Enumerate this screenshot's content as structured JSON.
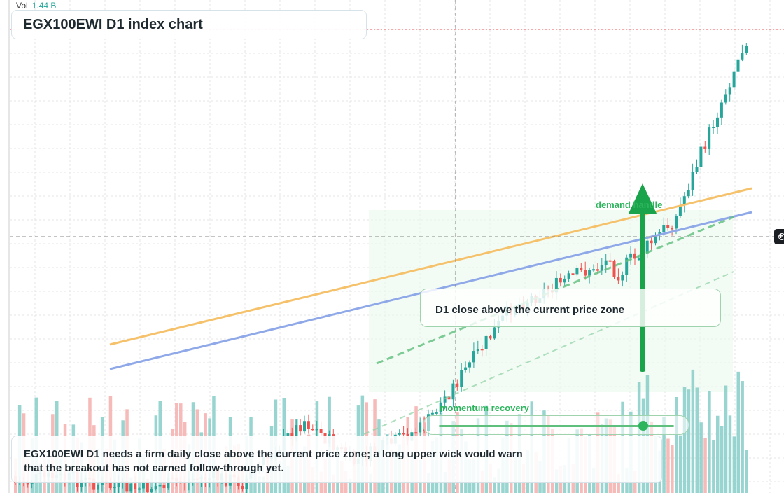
{
  "title": "EGX100EWI D1 index chart",
  "volume_legend": {
    "label": "Vol",
    "value": "1.44 B"
  },
  "annotations": {
    "close_zone_note": "D1 close above the current price zone",
    "momentum_label": "momentum recovery",
    "demand_label": "demand handle",
    "summary": "EGX100EWI D1 needs a firm daily close above the current price zone; a long upper wick would warn that the breakout has not earned follow-through yet."
  },
  "momentum_slider": {
    "level": 0.87
  },
  "colors": {
    "up": "#26a69a",
    "down": "#ef5350",
    "up_volume": "#80cbc4",
    "down_volume": "#f4a9a8",
    "resistance_line": "#f5c26b",
    "support_line": "#8ea8e8",
    "accent": "#19a34a",
    "crosshair": "#888888"
  },
  "chart_data": {
    "type": "candlestick",
    "title": "EGX100EWI D1 index chart",
    "grid": true,
    "crosshair": true,
    "candles_approx": [
      {
        "i": 0,
        "o": 150,
        "c": 172
      },
      {
        "i": 1,
        "o": 172,
        "c": 190
      },
      {
        "i": 2,
        "o": 190,
        "c": 205
      },
      {
        "i": 3,
        "o": 205,
        "c": 222
      },
      {
        "i": 4,
        "o": 222,
        "c": 240
      },
      {
        "i": 5,
        "o": 240,
        "c": 262
      },
      {
        "i": 6,
        "o": 262,
        "c": 286
      },
      {
        "i": 7,
        "o": 286,
        "c": 300
      },
      {
        "i": 8,
        "o": 300,
        "c": 315
      },
      {
        "i": 9,
        "o": 315,
        "c": 345
      },
      {
        "i": 10,
        "o": 345,
        "c": 340
      },
      {
        "i": 11,
        "o": 340,
        "c": 360
      },
      {
        "i": 12,
        "o": 360,
        "c": 372
      },
      {
        "i": 13,
        "o": 372,
        "c": 355
      },
      {
        "i": 14,
        "o": 355,
        "c": 380
      },
      {
        "i": 15,
        "o": 380,
        "c": 395
      },
      {
        "i": 16,
        "o": 395,
        "c": 410
      },
      {
        "i": 17,
        "o": 410,
        "c": 405
      },
      {
        "i": 18,
        "o": 405,
        "c": 420
      },
      {
        "i": 19,
        "o": 420,
        "c": 445
      },
      {
        "i": 20,
        "o": 445,
        "c": 432
      },
      {
        "i": 21,
        "o": 432,
        "c": 455
      },
      {
        "i": 22,
        "o": 455,
        "c": 470
      },
      {
        "i": 23,
        "o": 470,
        "c": 462
      },
      {
        "i": 24,
        "o": 462,
        "c": 500
      },
      {
        "i": 25,
        "o": 500,
        "c": 540
      },
      {
        "i": 26,
        "o": 540,
        "c": 585
      },
      {
        "i": 27,
        "o": 585,
        "c": 640
      },
      {
        "i": 28,
        "o": 640,
        "c": 690
      },
      {
        "i": 29,
        "o": 690,
        "c": 760
      },
      {
        "i": 30,
        "o": 760,
        "c": 745
      },
      {
        "i": 31,
        "o": 745,
        "c": 800
      }
    ],
    "volume_approx": [
      0.55,
      0.3,
      0.35,
      0.62,
      0.7,
      0.45,
      0.5,
      0.4,
      0.72,
      0.66,
      0.3,
      0.58,
      0.7,
      0.74,
      0.55,
      0.45,
      0.6,
      0.66,
      0.68,
      0.58,
      0.42,
      0.9,
      0.92,
      0.88,
      0.95,
      1.0,
      0.98,
      0.96,
      0.94,
      0.9,
      0.82,
      0.86
    ]
  }
}
